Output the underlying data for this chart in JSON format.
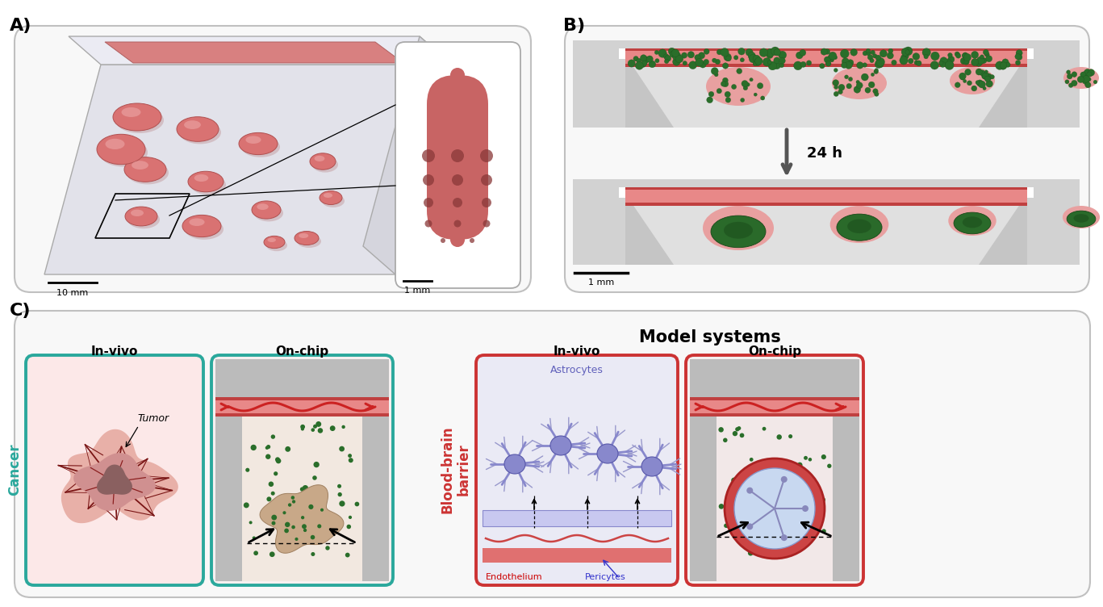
{
  "fig_width": 13.67,
  "fig_height": 7.52,
  "bg_color": "#ffffff",
  "panel_A_label": "A)",
  "panel_B_label": "B)",
  "panel_C_label": "C)",
  "label_fontsize": 16,
  "label_fontweight": "bold",
  "teal_color": "#2aa89c",
  "red_color": "#cc3333",
  "model_title": "Model systems",
  "cancer_label": "Cancer",
  "bbb_label": "Blood-brain\nbarrier",
  "invivo_label": "In-vivo",
  "onchip_label": "On-chip",
  "invivo_label2": "In-vivo",
  "onchip_label2": "On-chip",
  "tumor_text": "Tumor",
  "astrocytes_text": "Astrocytes",
  "endothelium_text": "Endothelium",
  "pericytes_text": "Pericytes",
  "scale_10mm": "10 mm",
  "scale_1mm_A": "1 mm",
  "scale_1mm_B": "1 mm",
  "time_label": "24 h"
}
